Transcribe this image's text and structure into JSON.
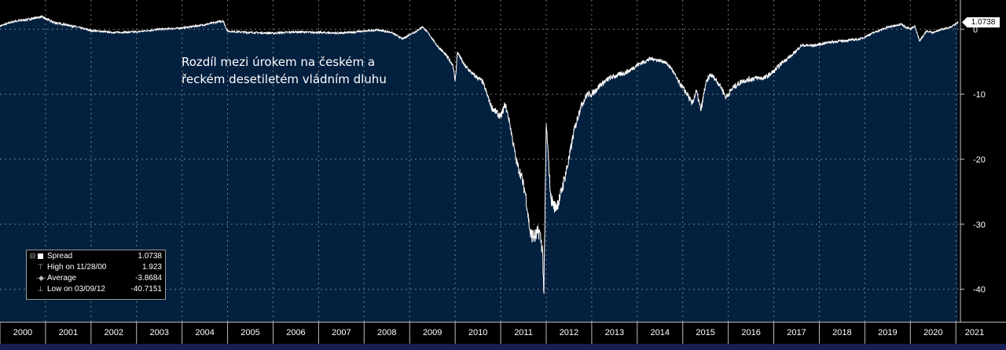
{
  "chart_data": {
    "type": "area",
    "annotation": "Rozdíl mezi úrokem na českém a řeckém desetiletém vládním dluhu",
    "x_ticks": [
      "2000",
      "2001",
      "2002",
      "2003",
      "2004",
      "2005",
      "2006",
      "2007",
      "2008",
      "2009",
      "2010",
      "2011",
      "2012",
      "2013",
      "2014",
      "2015",
      "2016",
      "2017",
      "2018",
      "2019",
      "2020",
      "2021"
    ],
    "xlim": [
      2000.0,
      2021.1
    ],
    "y_ticks": [
      0,
      -10,
      -20,
      -30,
      -40
    ],
    "y_tick_labels": [
      "0",
      "-10",
      "-20",
      "-30",
      "-40"
    ],
    "ylim": [
      -45.0,
      4.5
    ],
    "grid": true,
    "last_value": "1.0738",
    "colors": {
      "fill": "#04203f",
      "line": "#ffffff",
      "background": "#000000",
      "grid": "#7a7a7a",
      "bottom_bar": "#1b1d55"
    },
    "series": [
      {
        "name": "Spread",
        "points": [
          [
            2000.0,
            0.5
          ],
          [
            2000.3,
            1.2
          ],
          [
            2000.6,
            1.5
          ],
          [
            2000.91,
            1.92
          ],
          [
            2001.2,
            1.0
          ],
          [
            2001.6,
            0.5
          ],
          [
            2002.0,
            -0.2
          ],
          [
            2002.5,
            -0.5
          ],
          [
            2003.0,
            -0.4
          ],
          [
            2003.5,
            0.0
          ],
          [
            2004.0,
            0.2
          ],
          [
            2004.5,
            0.7
          ],
          [
            2004.9,
            1.3
          ],
          [
            2005.0,
            -0.3
          ],
          [
            2005.5,
            -0.5
          ],
          [
            2006.0,
            -0.6
          ],
          [
            2006.5,
            -0.4
          ],
          [
            2007.0,
            -0.5
          ],
          [
            2007.5,
            -0.6
          ],
          [
            2008.0,
            -0.3
          ],
          [
            2008.3,
            -0.1
          ],
          [
            2008.6,
            -0.5
          ],
          [
            2008.85,
            -1.5
          ],
          [
            2009.0,
            -0.8
          ],
          [
            2009.15,
            -0.3
          ],
          [
            2009.28,
            0.4
          ],
          [
            2009.4,
            -0.5
          ],
          [
            2009.6,
            -2.5
          ],
          [
            2009.8,
            -4.0
          ],
          [
            2009.95,
            -5.5
          ],
          [
            2010.0,
            -8.0
          ],
          [
            2010.05,
            -3.5
          ],
          [
            2010.2,
            -5.5
          ],
          [
            2010.4,
            -7.0
          ],
          [
            2010.6,
            -8.0
          ],
          [
            2010.8,
            -12.0
          ],
          [
            2011.0,
            -13.5
          ],
          [
            2011.1,
            -11.5
          ],
          [
            2011.2,
            -14.5
          ],
          [
            2011.35,
            -20.5
          ],
          [
            2011.45,
            -22.5
          ],
          [
            2011.55,
            -25.5
          ],
          [
            2011.65,
            -31.5
          ],
          [
            2011.75,
            -32.0
          ],
          [
            2011.85,
            -31.0
          ],
          [
            2011.92,
            -34.0
          ],
          [
            2011.95,
            -40.7
          ],
          [
            2012.0,
            -14.5
          ],
          [
            2012.05,
            -20.0
          ],
          [
            2012.1,
            -26.0
          ],
          [
            2012.2,
            -27.5
          ],
          [
            2012.3,
            -26.0
          ],
          [
            2012.4,
            -23.0
          ],
          [
            2012.5,
            -20.0
          ],
          [
            2012.6,
            -16.0
          ],
          [
            2012.75,
            -12.0
          ],
          [
            2012.9,
            -10.0
          ],
          [
            2013.0,
            -10.0
          ],
          [
            2013.2,
            -8.5
          ],
          [
            2013.4,
            -7.5
          ],
          [
            2013.6,
            -7.0
          ],
          [
            2013.8,
            -6.5
          ],
          [
            2014.0,
            -5.5
          ],
          [
            2014.3,
            -4.5
          ],
          [
            2014.6,
            -5.0
          ],
          [
            2014.75,
            -6.0
          ],
          [
            2014.9,
            -8.0
          ],
          [
            2015.0,
            -9.0
          ],
          [
            2015.1,
            -10.0
          ],
          [
            2015.2,
            -11.5
          ],
          [
            2015.3,
            -9.5
          ],
          [
            2015.4,
            -12.5
          ],
          [
            2015.5,
            -8.5
          ],
          [
            2015.6,
            -7.0
          ],
          [
            2015.7,
            -7.5
          ],
          [
            2015.85,
            -9.0
          ],
          [
            2015.95,
            -10.5
          ],
          [
            2016.1,
            -9.0
          ],
          [
            2016.3,
            -8.0
          ],
          [
            2016.6,
            -7.5
          ],
          [
            2016.8,
            -7.5
          ],
          [
            2017.0,
            -6.5
          ],
          [
            2017.2,
            -5.0
          ],
          [
            2017.4,
            -4.0
          ],
          [
            2017.6,
            -2.5
          ],
          [
            2017.9,
            -2.5
          ],
          [
            2018.2,
            -2.0
          ],
          [
            2018.5,
            -1.8
          ],
          [
            2018.9,
            -1.5
          ],
          [
            2019.2,
            -0.5
          ],
          [
            2019.5,
            0.3
          ],
          [
            2019.8,
            0.8
          ],
          [
            2019.9,
            0.3
          ],
          [
            2020.0,
            0.0
          ],
          [
            2020.1,
            0.5
          ],
          [
            2020.2,
            -1.8
          ],
          [
            2020.35,
            -0.3
          ],
          [
            2020.5,
            -0.5
          ],
          [
            2020.7,
            0.0
          ],
          [
            2020.9,
            0.4
          ],
          [
            2021.0,
            0.8
          ],
          [
            2021.05,
            1.07
          ]
        ]
      }
    ]
  },
  "legend": {
    "rows": [
      {
        "label": "Spread",
        "value": "1.0738"
      },
      {
        "label": "High on 11/28/00",
        "value": "1.923"
      },
      {
        "label": "Average",
        "value": "-3.8684"
      },
      {
        "label": "Low on 03/09/12",
        "value": "-40.7151"
      }
    ]
  }
}
